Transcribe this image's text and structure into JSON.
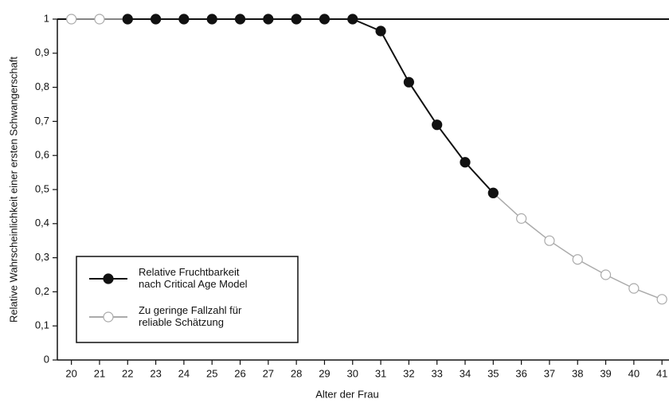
{
  "chart_data": {
    "type": "line",
    "x": [
      20,
      21,
      22,
      23,
      24,
      25,
      26,
      27,
      28,
      29,
      30,
      31,
      32,
      33,
      34,
      35,
      36,
      37,
      38,
      39,
      40,
      41
    ],
    "series": [
      {
        "name": "Zu geringe Fallzahl für\nreliable Schätzung",
        "color": "#aaaaaa",
        "marker": "open",
        "values": [
          1,
          1,
          1,
          null,
          null,
          null,
          null,
          null,
          null,
          null,
          null,
          null,
          null,
          null,
          null,
          0.49,
          0.415,
          0.35,
          0.295,
          0.25,
          0.21,
          0.178
        ]
      },
      {
        "name": "Relative Fruchtbarkeit\nnach Critical Age Model",
        "color": "#111111",
        "marker": "filled",
        "values": [
          null,
          null,
          1,
          1,
          1,
          1,
          1,
          1,
          1,
          1,
          1,
          0.965,
          0.815,
          0.69,
          0.58,
          0.49,
          null,
          null,
          null,
          null,
          null,
          null
        ]
      }
    ],
    "xlabel": "Alter der Frau",
    "ylabel": "Relative Wahrscheinlichkeit einer ersten Schwangerschaft",
    "xlim": [
      19.5,
      41.25
    ],
    "xticks": [
      20,
      21,
      22,
      23,
      24,
      25,
      26,
      27,
      28,
      29,
      30,
      31,
      32,
      33,
      34,
      35,
      36,
      37,
      38,
      39,
      40,
      41
    ],
    "ylim": [
      0,
      1
    ],
    "yticks": [
      0,
      {
        "value": 0.1,
        "label": "0,1"
      },
      {
        "value": 0.2,
        "label": "0,2"
      },
      {
        "value": 0.3,
        "label": "0,3"
      },
      {
        "value": 0.4,
        "label": "0,4"
      },
      {
        "value": 0.5,
        "label": "0,5"
      },
      {
        "value": 0.6,
        "label": "0,6"
      },
      {
        "value": 0.7,
        "label": "0,7"
      },
      {
        "value": 0.8,
        "label": "0,8"
      },
      {
        "value": 0.9,
        "label": "0,9"
      },
      1
    ],
    "legend": "lower left",
    "grid": false
  }
}
